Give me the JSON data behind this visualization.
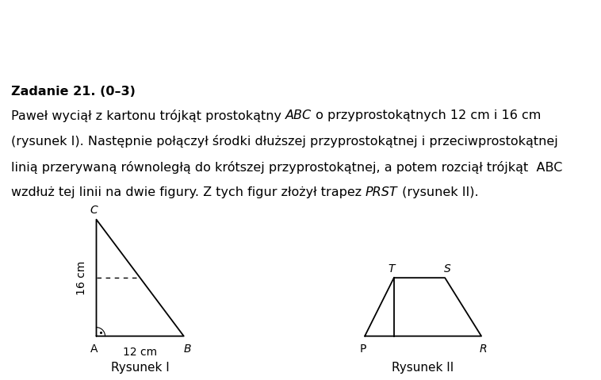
{
  "bg_color": "#ffffff",
  "header_bg": "#c8c8c8",
  "header_text": "Zadanie 21. (0–3)",
  "body_lines": [
    "Paweł wyciął z kartonu trójkąt prostokątny  ABC  o przyprostokątnych 12 cm i 16 cm",
    "(rysunek I). Następnie połączył środki dłuższej przyprostokątnej i przeciwprostokątnej",
    "linią przerywaną równoległą do krótszej przyprostokątnej, a potem rozciął trójkąt  ABC",
    "wzdłuż tej linii na dwie figury. Z tych figur złożył trapez  PRST  (rysunek II)."
  ],
  "body_italic_words": [
    "ABC",
    "ABC",
    "PRST"
  ],
  "triangle": {
    "A": [
      0.0,
      0.0
    ],
    "B": [
      12.0,
      0.0
    ],
    "C": [
      0.0,
      16.0
    ],
    "mid_AC": [
      0.0,
      8.0
    ],
    "mid_hyp": [
      6.0,
      8.0
    ],
    "label_C": "C",
    "label_A": "A",
    "label_B": "B",
    "dim_label": "16 cm",
    "base_label": "12 cm",
    "caption": "Rysunek I"
  },
  "trapezoid": {
    "P": [
      0.0,
      0.0
    ],
    "R": [
      16.0,
      0.0
    ],
    "T": [
      4.0,
      8.0
    ],
    "S": [
      11.0,
      8.0
    ],
    "label_P": "P",
    "label_R": "R",
    "label_T": "T",
    "label_S": "S",
    "caption": "Rysunek II"
  },
  "font_size_body": 11.5,
  "font_size_header": 11.5,
  "font_size_labels": 10,
  "font_size_caption": 11
}
